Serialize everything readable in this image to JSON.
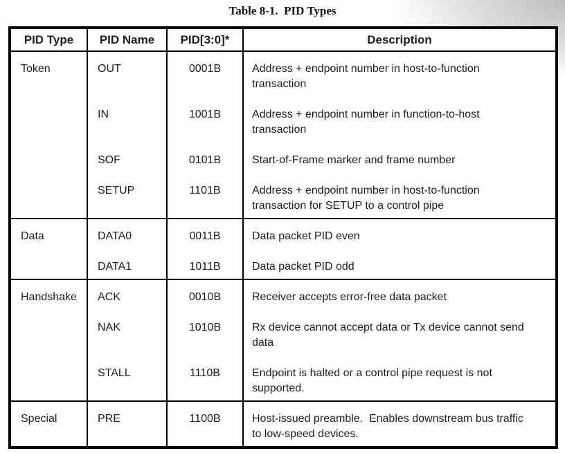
{
  "title": "Table 8-1.  PID Types",
  "colors": {
    "border": "#000000",
    "text": "#1d1d1d",
    "corner_shadow": "#bdbdbd"
  },
  "table": {
    "headers": [
      "PID Type",
      "PID Name",
      "PID[3:0]*",
      "Description"
    ],
    "groups": [
      {
        "type": "Token",
        "rows": [
          {
            "name": "OUT",
            "code": "0001B",
            "desc": "Address + endpoint number in host-to-function\ntransaction"
          },
          {
            "name": "IN",
            "code": "1001B",
            "desc": "Address + endpoint number in function-to-host\ntransaction"
          },
          {
            "name": "SOF",
            "code": "0101B",
            "desc": "Start-of-Frame marker and frame number"
          },
          {
            "name": "SETUP",
            "code": "1101B",
            "desc": "Address + endpoint number in host-to-function\ntransaction for SETUP to a control pipe"
          }
        ]
      },
      {
        "type": "Data",
        "rows": [
          {
            "name": "DATA0",
            "code": "0011B",
            "desc": "Data packet PID even"
          },
          {
            "name": "DATA1",
            "code": "1011B",
            "desc": "Data packet PID odd"
          }
        ]
      },
      {
        "type": "Handshake",
        "rows": [
          {
            "name": "ACK",
            "code": "0010B",
            "desc": "Receiver accepts error-free data packet"
          },
          {
            "name": "NAK",
            "code": "1010B",
            "desc": "Rx device cannot accept data or Tx device cannot send\ndata"
          },
          {
            "name": "STALL",
            "code": "1110B",
            "desc": "Endpoint is halted or a control pipe request is not\nsupported."
          }
        ]
      },
      {
        "type": "Special",
        "rows": [
          {
            "name": "PRE",
            "code": "1100B",
            "desc": "Host-issued preamble.  Enables downstream bus traffic\nto low-speed devices."
          }
        ]
      }
    ]
  }
}
